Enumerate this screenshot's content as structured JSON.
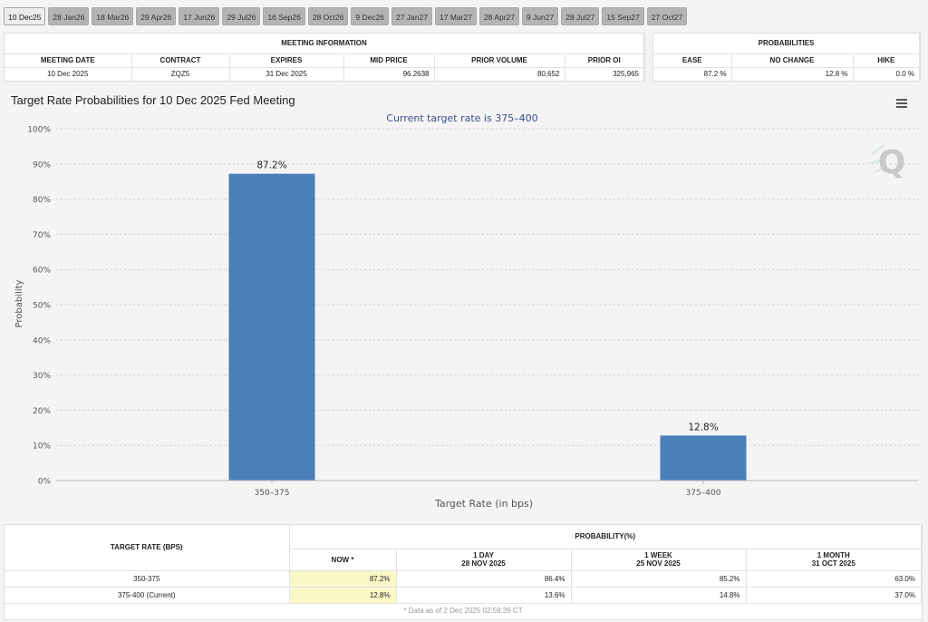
{
  "tabs": [
    "10 Dec25",
    "28 Jan26",
    "18 Mar26",
    "29 Apr26",
    "17 Jun26",
    "29 Jul26",
    "16 Sep26",
    "28 Oct26",
    "9 Dec26",
    "27 Jan27",
    "17 Mar27",
    "28 Apr27",
    "9 Jun27",
    "28 Jul27",
    "15 Sep27",
    "27 Oct27"
  ],
  "meeting_info": {
    "title": "MEETING INFORMATION",
    "headers": [
      "MEETING DATE",
      "CONTRACT",
      "EXPIRES",
      "MID PRICE",
      "PRIOR VOLUME",
      "PRIOR OI"
    ],
    "values": [
      "10 Dec 2025",
      "ZQZ5",
      "31 Dec 2025",
      "96.2638",
      "80,652",
      "325,965"
    ]
  },
  "probabilities": {
    "title": "PROBABILITIES",
    "headers": [
      "EASE",
      "NO CHANGE",
      "HIKE"
    ],
    "values": [
      "87.2 %",
      "12.8 %",
      "0.0 %"
    ]
  },
  "chart_data": {
    "type": "bar",
    "title": "Target Rate Probabilities for 10 Dec 2025 Fed Meeting",
    "subtitle": "Current target rate is 375–400",
    "xlabel": "Target Rate (in bps)",
    "ylabel": "Probability",
    "categories": [
      "350–375",
      "375–400"
    ],
    "values": [
      87.2,
      12.8
    ],
    "data_labels": [
      "87.2%",
      "12.8%"
    ],
    "ylim": [
      0,
      100
    ],
    "yticks": [
      "0%",
      "10%",
      "20%",
      "30%",
      "40%",
      "50%",
      "60%",
      "70%",
      "80%",
      "90%",
      "100%"
    ],
    "grid": true,
    "bar_color": "#4a7fb8",
    "menu_icon": "hamburger-menu-icon",
    "watermark": "Q"
  },
  "bottom_table": {
    "col_target": "TARGET RATE (BPS)",
    "col_prob": "PROBABILITY(%)",
    "sub_headers": [
      {
        "line1": "NOW *",
        "line2": ""
      },
      {
        "line1": "1 DAY",
        "line2": "28 NOV 2025"
      },
      {
        "line1": "1 WEEK",
        "line2": "25 NOV 2025"
      },
      {
        "line1": "1 MONTH",
        "line2": "31 OCT 2025"
      }
    ],
    "rows": [
      {
        "rate": "350-375",
        "now": "87.2%",
        "day": "86.4%",
        "week": "85.2%",
        "month": "63.0%"
      },
      {
        "rate": "375-400 (Current)",
        "now": "12.8%",
        "day": "13.6%",
        "week": "14.8%",
        "month": "37.0%"
      }
    ],
    "note": "* Data as of 2 Dec 2025 02:59:39 CT"
  }
}
